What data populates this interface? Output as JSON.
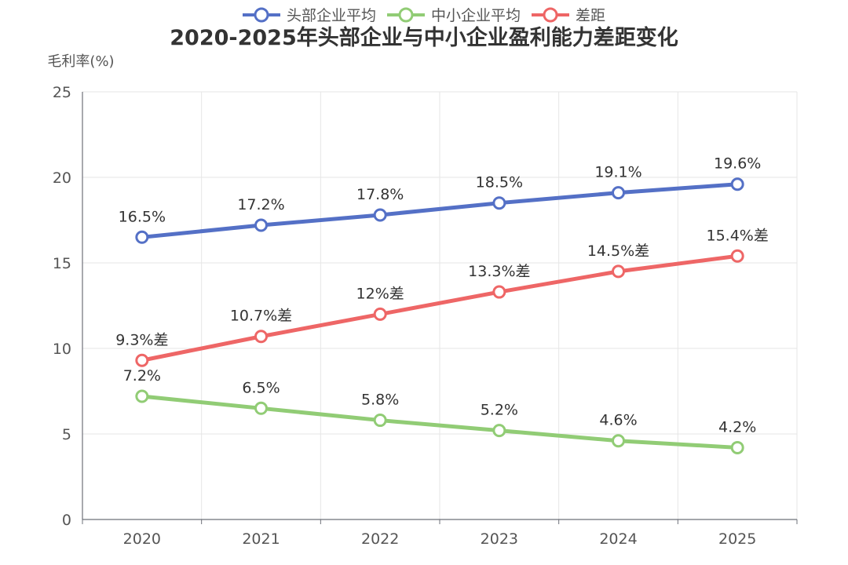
{
  "chart_data": {
    "type": "line",
    "title": "2020-2025年头部企业与中小企业盈利能力差距变化",
    "ylabel": "毛利率(%)",
    "xlabel": "",
    "ylim": [
      0,
      25
    ],
    "yticks": [
      0,
      5,
      10,
      15,
      20,
      25
    ],
    "categories": [
      "2020",
      "2021",
      "2022",
      "2023",
      "2024",
      "2025"
    ],
    "grid": true,
    "legend_position": "top-center",
    "series": [
      {
        "name": "头部企业平均",
        "color": "#5470c6",
        "values": [
          16.5,
          17.2,
          17.8,
          18.5,
          19.1,
          19.6
        ],
        "labels": [
          "16.5%",
          "17.2%",
          "17.8%",
          "18.5%",
          "19.1%",
          "19.6%"
        ]
      },
      {
        "name": "中小企业平均",
        "color": "#91cc75",
        "values": [
          7.2,
          6.5,
          5.8,
          5.2,
          4.6,
          4.2
        ],
        "labels": [
          "7.2%",
          "6.5%",
          "5.8%",
          "5.2%",
          "4.6%",
          "4.2%"
        ]
      },
      {
        "name": "差距",
        "color": "#ee6666",
        "values": [
          9.3,
          10.7,
          12,
          13.3,
          14.5,
          15.4
        ],
        "labels": [
          "9.3%差",
          "10.7%差",
          "12%差",
          "13.3%差",
          "14.5%差",
          "15.4%差"
        ]
      }
    ]
  }
}
